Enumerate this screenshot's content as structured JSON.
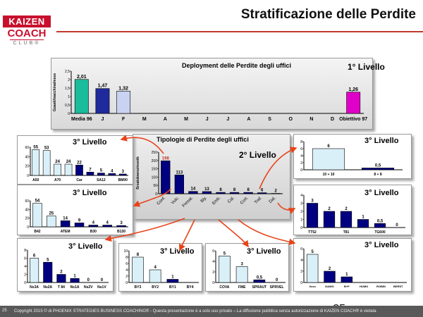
{
  "page": {
    "title": "Stratificazione delle Perdite",
    "logo": {
      "line1": "KAIZEN",
      "line2": "COACH",
      "line3": "CLUB®"
    },
    "footer": "Copyright 2015 © di PHOENIX STRATEGIES BUSINESS COACHING® - Questa presentazione è a solo uso privato – La diffusione pubblica senza autorizzazione di KAIZEN COACH® è vietata",
    "footer_page": "25",
    "page_number": "25",
    "colors": {
      "accent": "#c8102e",
      "arrow": "#e8431a",
      "dark_bar": "#000080",
      "light_bar": "#d9f0f8",
      "cyan_bar": "#1abc9c",
      "magenta_bar": "#e000c8"
    }
  },
  "chart_data": [
    {
      "id": "c1",
      "type": "bar",
      "title": "Deployment delle Perdite degli uffici",
      "level": "1°  Livello",
      "ylabel": "Guasti/macchina/mese",
      "ylim": [
        0,
        2.5
      ],
      "yticks": [
        "0",
        "0,5",
        "1",
        "1,5",
        "2",
        "2,5"
      ],
      "categories": [
        "Media 96",
        "J",
        "F",
        "M",
        "A",
        "M",
        "J",
        "J",
        "A",
        "S",
        "O",
        "N",
        "D",
        "Obiettivo 97"
      ],
      "values": [
        2.01,
        1.47,
        1.32,
        null,
        null,
        null,
        null,
        null,
        null,
        null,
        null,
        null,
        null,
        1.26
      ],
      "labels": [
        "2,01",
        "1,47",
        "1,32",
        "",
        "",
        "",
        "",
        "",
        "",
        "",
        "",
        "",
        "",
        "1,26"
      ],
      "colors": [
        "#1abc9c",
        "#1f2a9c",
        "#c9d2f0",
        null,
        null,
        null,
        null,
        null,
        null,
        null,
        null,
        null,
        null,
        "#e000c8"
      ]
    },
    {
      "id": "c2",
      "type": "bar",
      "title": "Tipologie di Perdite degli uffici",
      "level": "2°  Livello",
      "ylabel": "Breakdowns/month",
      "ylim": [
        0,
        250
      ],
      "yticks": [
        "0",
        "50",
        "100",
        "150",
        "200",
        "250"
      ],
      "categories": [
        "Conf.",
        "Vulc.",
        "Fresat.",
        "Bly.",
        "Emb.",
        "Cal.",
        "Cort.",
        "Traf.",
        "Dal."
      ],
      "values": [
        198,
        113,
        14,
        13,
        8,
        8,
        8,
        6,
        2
      ],
      "labels": [
        "198",
        "113",
        "14",
        "13",
        "8",
        "8",
        "8",
        "6",
        "2"
      ],
      "colors": [
        "#000080",
        "#000080",
        "#000080",
        "#000080",
        "#000080",
        "#000080",
        "#000080",
        "#000080",
        "#000080"
      ]
    },
    {
      "id": "c3",
      "type": "bar",
      "level": "3°  Livello",
      "ylim": [
        0,
        60
      ],
      "yticks": [
        "0",
        "20",
        "40",
        "60"
      ],
      "categories": [
        "A50",
        "",
        "A70",
        "",
        "Car",
        "",
        "SA12",
        "",
        "BM00"
      ],
      "values": [
        55,
        53,
        24,
        24,
        22,
        7,
        5,
        4,
        3
      ],
      "labels": [
        "55",
        "53",
        "24",
        "24",
        "22",
        "7",
        "5",
        "4",
        "3"
      ],
      "colors": [
        "#d9f0f8",
        "#d9f0f8",
        "#d9f0f8",
        "#d9f0f8",
        "#000080",
        "#000080",
        "#000080",
        "#000080",
        "#000080"
      ]
    },
    {
      "id": "c4",
      "type": "bar",
      "level": "3°  Livello",
      "ylim": [
        0,
        60
      ],
      "yticks": [
        "0",
        "20",
        "40",
        "60"
      ],
      "categories": [
        "B42",
        "",
        "ATEM",
        "",
        "B30",
        "",
        "B130"
      ],
      "values": [
        54,
        25,
        14,
        9,
        4,
        4,
        3
      ],
      "labels": [
        "54",
        "25",
        "14",
        "9",
        "4",
        "4",
        "3"
      ],
      "colors": [
        "#d9f0f8",
        "#d9f0f8",
        "#000080",
        "#000080",
        "#000080",
        "#000080",
        "#000080"
      ]
    },
    {
      "id": "c5",
      "type": "bar",
      "level": "3°  Livello",
      "ylim": [
        0,
        8
      ],
      "yticks": [
        "0",
        "2",
        "4",
        "6",
        "8"
      ],
      "categories": [
        "10 + 10",
        "8 + 8"
      ],
      "values": [
        6,
        0.5
      ],
      "labels": [
        "6",
        "0,5"
      ],
      "colors": [
        "#d9f0f8",
        "#000080"
      ]
    },
    {
      "id": "c6",
      "type": "bar",
      "level": "3°  Livello",
      "ylim": [
        0,
        4
      ],
      "yticks": [
        "0",
        "1",
        "2",
        "3",
        "4"
      ],
      "categories": [
        "TT52",
        "",
        "T81",
        "",
        "TG600",
        ""
      ],
      "values": [
        3,
        2,
        2,
        1,
        0.5,
        0
      ],
      "labels": [
        "3",
        "2",
        "2",
        "1",
        "0,5",
        "0"
      ],
      "colors": [
        "#000080",
        "#000080",
        "#000080",
        "#000080",
        "#000080",
        "#000080"
      ]
    },
    {
      "id": "c7",
      "type": "bar",
      "level": "3°  Livello",
      "ylim": [
        0,
        8
      ],
      "yticks": [
        "0",
        "2",
        "4",
        "6",
        "8"
      ],
      "categories": [
        "Ns3A",
        "Ns2A",
        "T 84",
        "Ns1A",
        "Ns2V",
        "Ns1V"
      ],
      "values": [
        6,
        5,
        2,
        1,
        0,
        0
      ],
      "labels": [
        "6",
        "5",
        "2",
        "1",
        "0",
        "0"
      ],
      "colors": [
        "#d9f0f8",
        "#000080",
        "#000080",
        "#000080",
        "#000080",
        "#000080"
      ]
    },
    {
      "id": "c8",
      "type": "bar",
      "level": "3°  Livello",
      "ylim": [
        0,
        10
      ],
      "yticks": [
        "0",
        "2",
        "4",
        "6",
        "8",
        "10"
      ],
      "categories": [
        "BY3",
        "BY2",
        "BY1",
        "BY4"
      ],
      "values": [
        8,
        4,
        1,
        null
      ],
      "labels": [
        "8",
        "4",
        "1",
        ""
      ],
      "colors": [
        "#d9f0f8",
        "#d9f0f8",
        "#000080",
        null
      ]
    },
    {
      "id": "c9",
      "type": "bar",
      "level": "3°  Livello",
      "ylim": [
        0,
        6
      ],
      "yticks": [
        "0",
        "2",
        "4",
        "6"
      ],
      "categories": [
        "COVA",
        "FME",
        "SPRAUT",
        "SPRVEL"
      ],
      "values": [
        5,
        3,
        0.5,
        0
      ],
      "labels": [
        "5",
        "3",
        "0,5",
        "0"
      ],
      "colors": [
        "#d9f0f8",
        "#d9f0f8",
        "#000080",
        "#000080"
      ]
    },
    {
      "id": "c10",
      "type": "bar",
      "level": "3°  Livello",
      "ylim": [
        0,
        6
      ],
      "yticks": [
        "0",
        "2",
        "4",
        "6"
      ],
      "categories": [
        "Xxxx",
        "DAWO",
        "B+F",
        "HUMO",
        "ROBIN",
        "BERST"
      ],
      "values": [
        5,
        2,
        1,
        null,
        null,
        null
      ],
      "labels": [
        "5",
        "2",
        "1",
        "",
        "",
        ""
      ],
      "colors": [
        "#d9f0f8",
        "#000080",
        "#000080",
        null,
        null,
        null
      ]
    }
  ]
}
